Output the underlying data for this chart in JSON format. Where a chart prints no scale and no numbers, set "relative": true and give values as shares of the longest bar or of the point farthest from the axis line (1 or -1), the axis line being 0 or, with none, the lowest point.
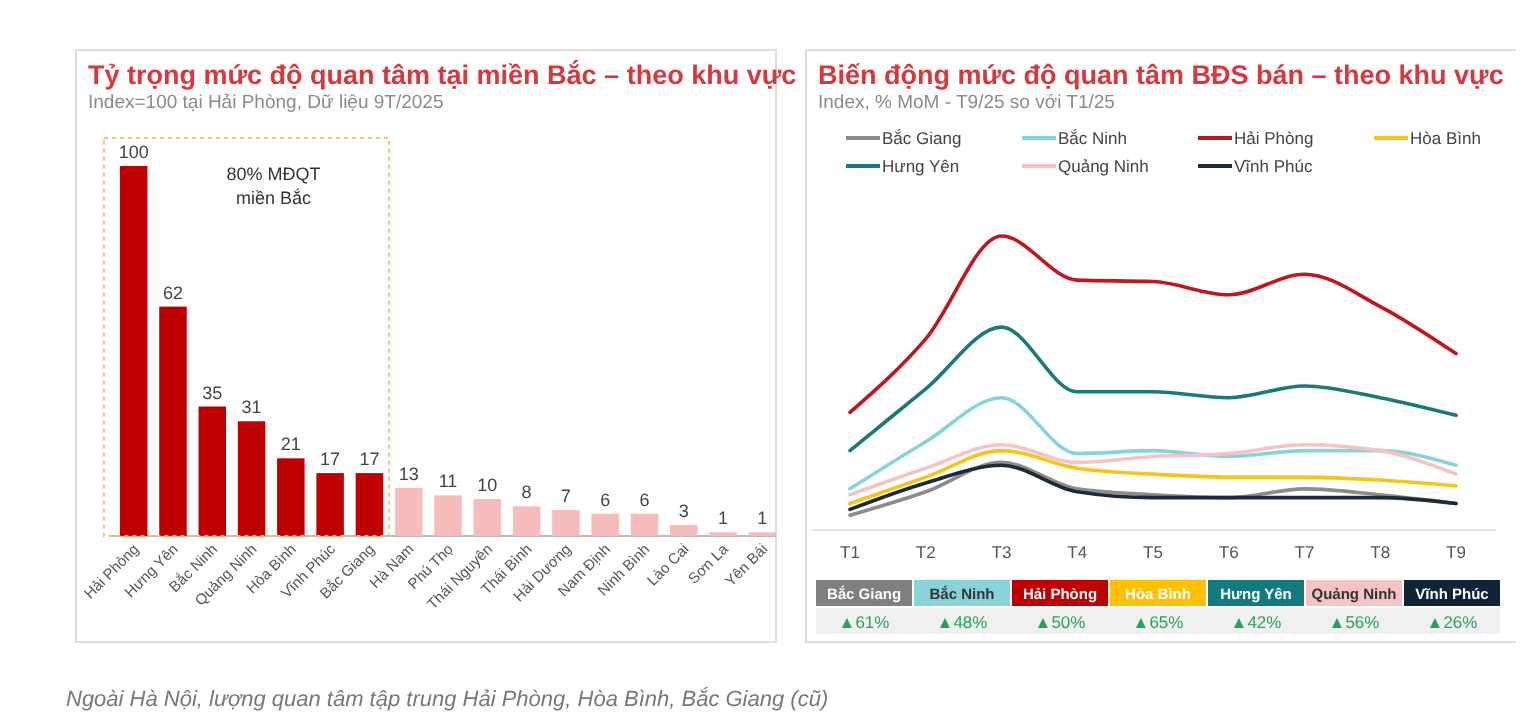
{
  "chart_data": [
    {
      "type": "bar",
      "title": "Tỷ trọng mức độ quan tâm tại miền Bắc – theo khu vực",
      "subtitle": "Index=100 tại Hải Phòng, Dữ liệu 9T/2025",
      "categories": [
        "Hải Phòng",
        "Hưng Yên",
        "Bắc Ninh",
        "Quảng Ninh",
        "Hòa Bình",
        "Vĩnh Phúc",
        "Bắc Giang",
        "Hà Nam",
        "Phú Thọ",
        "Thái Nguyên",
        "Thái Bình",
        "Hải Dương",
        "Nam Định",
        "Ninh Bình",
        "Lào Cai",
        "Sơn La",
        "Yên Bái"
      ],
      "values": [
        100,
        62,
        35,
        31,
        21,
        17,
        17,
        13,
        11,
        10,
        8,
        7,
        6,
        6,
        3,
        1,
        1
      ],
      "colors": [
        "#c00000",
        "#c00000",
        "#c00000",
        "#c00000",
        "#c00000",
        "#c00000",
        "#c00000",
        "#f6bcbc",
        "#f6bcbc",
        "#f6bcbc",
        "#f6bcbc",
        "#f6bcbc",
        "#f6bcbc",
        "#f6bcbc",
        "#f6bcbc",
        "#f6bcbc",
        "#f6bcbc"
      ],
      "data_labels": true,
      "annotations": [
        "80% MĐQT\nmiền Bắc",
        "Ngoài Hà Nội, lượng quan tâm tập trung Hải Phòng, Hòa Bình, Bắc Giang (cũ)"
      ]
    },
    {
      "type": "line",
      "title": "Biến động mức độ quan tâm BĐS bán – theo khu vực",
      "subtitle": "Index, % MoM -  T9/25 so với T1/25",
      "relative": true,
      "legend": "top",
      "categories": [
        "T1",
        "T2",
        "T3",
        "T4",
        "T5",
        "T6",
        "T7",
        "T8",
        "T9"
      ],
      "series": [
        {
          "name": "Bắc Giang",
          "color": "#8c8c8c",
          "values": [
            0.05,
            0.13,
            0.23,
            0.14,
            0.12,
            0.11,
            0.14,
            0.12,
            0.09
          ]
        },
        {
          "name": "Bắc Ninh",
          "color": "#86d4d9",
          "values": [
            0.14,
            0.3,
            0.45,
            0.26,
            0.27,
            0.25,
            0.27,
            0.27,
            0.22
          ]
        },
        {
          "name": "Hải Phòng",
          "color": "#c0171f",
          "values": [
            0.4,
            0.65,
            1,
            0.85,
            0.845,
            0.8,
            0.87,
            0.76,
            0.6
          ]
        },
        {
          "name": "Hòa Bình",
          "color": "#f5c518",
          "values": [
            0.09,
            0.18,
            0.27,
            0.21,
            0.19,
            0.18,
            0.18,
            0.17,
            0.15
          ]
        },
        {
          "name": "Hưng Yên",
          "color": "#1a7a7a",
          "values": [
            0.27,
            0.48,
            0.69,
            0.47,
            0.47,
            0.45,
            0.49,
            0.45,
            0.39
          ]
        },
        {
          "name": "Quảng Ninh",
          "color": "#f4c4c4",
          "values": [
            0.12,
            0.21,
            0.29,
            0.23,
            0.25,
            0.26,
            0.29,
            0.27,
            0.19
          ]
        },
        {
          "name": "Vĩnh Phúc",
          "color": "#1e2a3a",
          "values": [
            0.07,
            0.16,
            0.22,
            0.13,
            0.11,
            0.11,
            0.11,
            0.11,
            0.09
          ]
        }
      ]
    },
    {
      "type": "other",
      "categories": [
        "Bắc Giang",
        "Bắc Ninh",
        "Hải Phòng",
        "Hòa Bình",
        "Hưng Yên",
        "Quảng Ninh",
        "Vĩnh Phúc"
      ],
      "colors": [
        "#7f7f7f",
        "#86d4d9",
        "#c00000",
        "#ffc000",
        "#137b7f",
        "#f4c4c4",
        "#0f2437"
      ],
      "value_labels": [
        "▲61%",
        "▲48%",
        "▲50%",
        "▲65%",
        "▲42%",
        "▲56%",
        "▲26%"
      ]
    }
  ]
}
